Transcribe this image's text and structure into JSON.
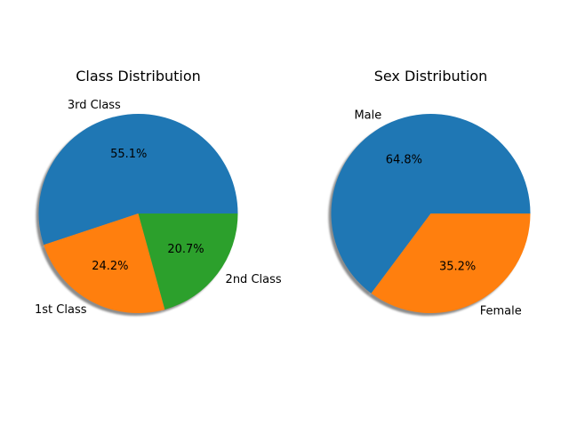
{
  "chart_data": [
    {
      "type": "pie",
      "title": "Class Distribution",
      "slices": [
        {
          "label": "3rd Class",
          "value": 55.1,
          "pct_label": "55.1%",
          "color": "#1f77b4"
        },
        {
          "label": "1st Class",
          "value": 24.2,
          "pct_label": "24.2%",
          "color": "#ff7f0e"
        },
        {
          "label": "2nd Class",
          "value": 20.7,
          "pct_label": "20.7%",
          "color": "#2ca02c"
        }
      ],
      "start_angle_deg": 0,
      "direction": "counterclockwise",
      "shadow": true
    },
    {
      "type": "pie",
      "title": "Sex Distribution",
      "slices": [
        {
          "label": "Male",
          "value": 64.8,
          "pct_label": "64.8%",
          "color": "#1f77b4"
        },
        {
          "label": "Female",
          "value": 35.2,
          "pct_label": "35.2%",
          "color": "#ff7f0e"
        }
      ],
      "start_angle_deg": 0,
      "direction": "counterclockwise",
      "shadow": true
    }
  ]
}
